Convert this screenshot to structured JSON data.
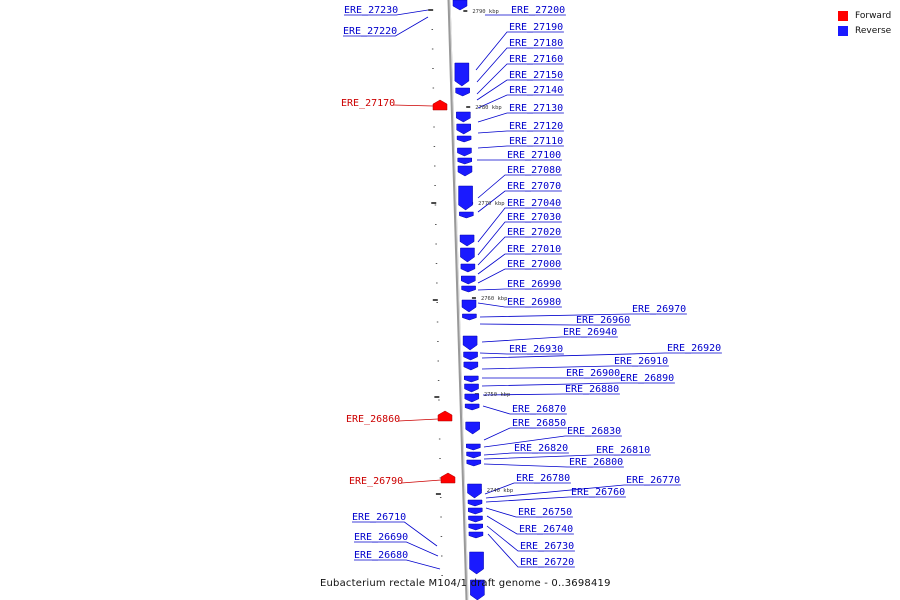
{
  "colors": {
    "forward": "#ff0000",
    "reverse": "#1a1aff",
    "backbone": "#999999"
  },
  "legend": [
    {
      "label": "Forward",
      "color": "#ff0000"
    },
    {
      "label": "Reverse",
      "color": "#1a1aff"
    }
  ],
  "caption": "Eubacterium rectale M104/1 draft genome - 0..3698419",
  "scale_labels": [
    "2790 kbp",
    "2780 kbp",
    "2770 kbp",
    "2760 kbp",
    "2750 kbp",
    "2740 kbp"
  ],
  "genes_reverse": [
    "ERE_27230",
    "ERE_27220",
    "ERE_27200",
    "ERE_27190",
    "ERE_27180",
    "ERE_27160",
    "ERE_27150",
    "ERE_27140",
    "ERE_27130",
    "ERE_27120",
    "ERE_27110",
    "ERE_27100",
    "ERE_27080",
    "ERE_27070",
    "ERE_27040",
    "ERE_27030",
    "ERE_27020",
    "ERE_27010",
    "ERE_27000",
    "ERE_26990",
    "ERE_26980",
    "ERE_26970",
    "ERE_26960",
    "ERE_26940",
    "ERE_26930",
    "ERE_26920",
    "ERE_26910",
    "ERE_26900",
    "ERE_26890",
    "ERE_26880",
    "ERE_26870",
    "ERE_26850",
    "ERE_26830",
    "ERE_26820",
    "ERE_26810",
    "ERE_26800",
    "ERE_26780",
    "ERE_26770",
    "ERE_26760",
    "ERE_26750",
    "ERE_26740",
    "ERE_26730",
    "ERE_26720",
    "ERE_26710",
    "ERE_26690",
    "ERE_26680"
  ],
  "genes_forward": [
    "ERE_27170",
    "ERE_26860",
    "ERE_26790"
  ]
}
